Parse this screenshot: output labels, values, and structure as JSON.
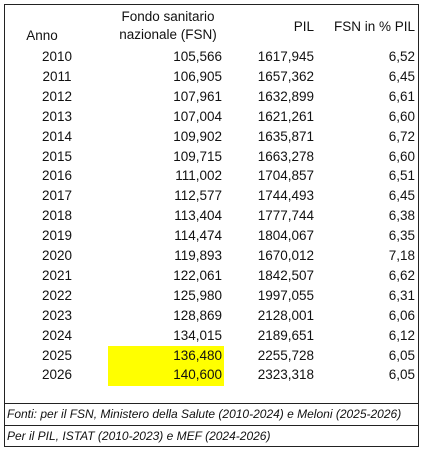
{
  "table": {
    "header": {
      "year": "Anno",
      "fsn": [
        "Fondo sanitario",
        "nazionale (FSN)"
      ],
      "pil": "PIL",
      "ratio": "FSN in % PIL"
    },
    "rows": [
      [
        "2010",
        "105,566",
        "1617,945",
        "6,52"
      ],
      [
        "2011",
        "106,905",
        "1657,362",
        "6,45"
      ],
      [
        "2012",
        "107,961",
        "1632,899",
        "6,61"
      ],
      [
        "2013",
        "107,004",
        "1621,261",
        "6,60"
      ],
      [
        "2014",
        "109,902",
        "1635,871",
        "6,72"
      ],
      [
        "2015",
        "109,715",
        "1663,278",
        "6,60"
      ],
      [
        "2016",
        "111,002",
        "1704,857",
        "6,51"
      ],
      [
        "2017",
        "112,577",
        "1744,493",
        "6,45"
      ],
      [
        "2018",
        "113,404",
        "1777,744",
        "6,38"
      ],
      [
        "2019",
        "114,474",
        "1804,067",
        "6,35"
      ],
      [
        "2020",
        "119,893",
        "1670,012",
        "7,18"
      ],
      [
        "2021",
        "122,061",
        "1842,507",
        "6,62"
      ],
      [
        "2022",
        "125,980",
        "1997,055",
        "6,31"
      ],
      [
        "2023",
        "128,869",
        "2128,001",
        "6,06"
      ],
      [
        "2024",
        "134,015",
        "2189,651",
        "6,12"
      ],
      [
        "2025",
        "136,480",
        "2255,728",
        "6,05"
      ],
      [
        "2026",
        "140,600",
        "2323,318",
        "6,05"
      ]
    ],
    "notes": [
      "Fonti: per il FSN, Ministero della Salute (2010-2024) e Meloni (2025-2026)",
      "Per il PIL, ISTAT (2010-2023) e MEF (2024-2026)"
    ]
  }
}
